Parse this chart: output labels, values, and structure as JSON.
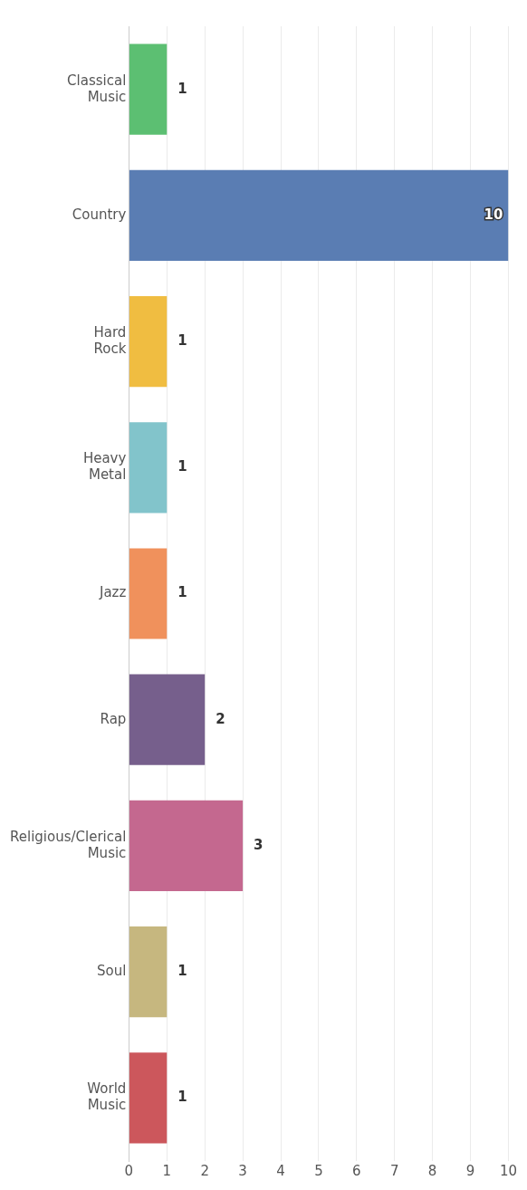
{
  "chart_data": {
    "type": "bar",
    "orientation": "horizontal",
    "categories": [
      "Classical Music",
      "Country",
      "Hard Rock",
      "Heavy Metal",
      "Jazz",
      "Rap",
      "Religious/Clerical Music",
      "Soul",
      "World Music"
    ],
    "values": [
      1,
      10,
      1,
      1,
      1,
      2,
      3,
      1,
      1
    ],
    "colors": [
      "#5cbf72",
      "#5a7db3",
      "#f0bd41",
      "#82c4cb",
      "#f0915c",
      "#765f8c",
      "#c4688f",
      "#c6b77f",
      "#cc575c"
    ],
    "xlim": [
      0,
      10
    ],
    "xticks": [
      0,
      1,
      2,
      3,
      4,
      5,
      6,
      7,
      8,
      9,
      10
    ],
    "grid": "x",
    "data_labels": true,
    "legend": false
  }
}
